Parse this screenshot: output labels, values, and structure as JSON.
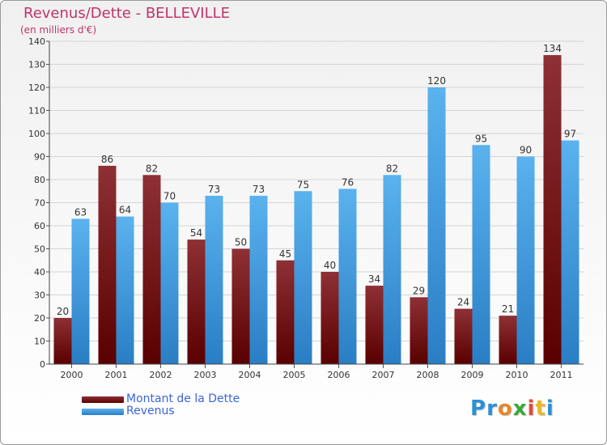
{
  "title": "Revenus/Dette - BELLEVILLE",
  "subtitle": "(en milliers d'€)",
  "logo": {
    "letters": [
      "P",
      "r",
      "o",
      "x",
      "i",
      "t",
      "i"
    ],
    "colors": [
      "#2c8fd6",
      "#2c8fd6",
      "#e8872b",
      "#3aa838",
      "#e84a3a",
      "#e8b82b",
      "#2c8fd6"
    ]
  },
  "legend": [
    {
      "label": "Montant de la Dette",
      "color": "#7a1416"
    },
    {
      "label": "Revenus",
      "color": "#4aa6e8"
    }
  ],
  "chart_data": {
    "type": "bar",
    "title": "Revenus/Dette - BELLEVILLE",
    "ylabel": "(en milliers d'€)",
    "categories": [
      "2000",
      "2001",
      "2002",
      "2003",
      "2004",
      "2005",
      "2006",
      "2007",
      "2008",
      "2009",
      "2010",
      "2011"
    ],
    "series": [
      {
        "name": "Montant de la Dette",
        "color": "#7a1416",
        "values": [
          20,
          86,
          82,
          54,
          50,
          45,
          40,
          34,
          29,
          24,
          21,
          134
        ]
      },
      {
        "name": "Revenus",
        "color": "#4aa6e8",
        "values": [
          63,
          64,
          70,
          73,
          73,
          75,
          76,
          82,
          120,
          95,
          90,
          97
        ]
      }
    ],
    "ylim": [
      0,
      140
    ],
    "yticks": [
      0,
      10,
      20,
      30,
      40,
      50,
      60,
      70,
      80,
      90,
      100,
      110,
      120,
      130,
      140
    ],
    "grid": true,
    "legend_position": "bottom-left"
  }
}
